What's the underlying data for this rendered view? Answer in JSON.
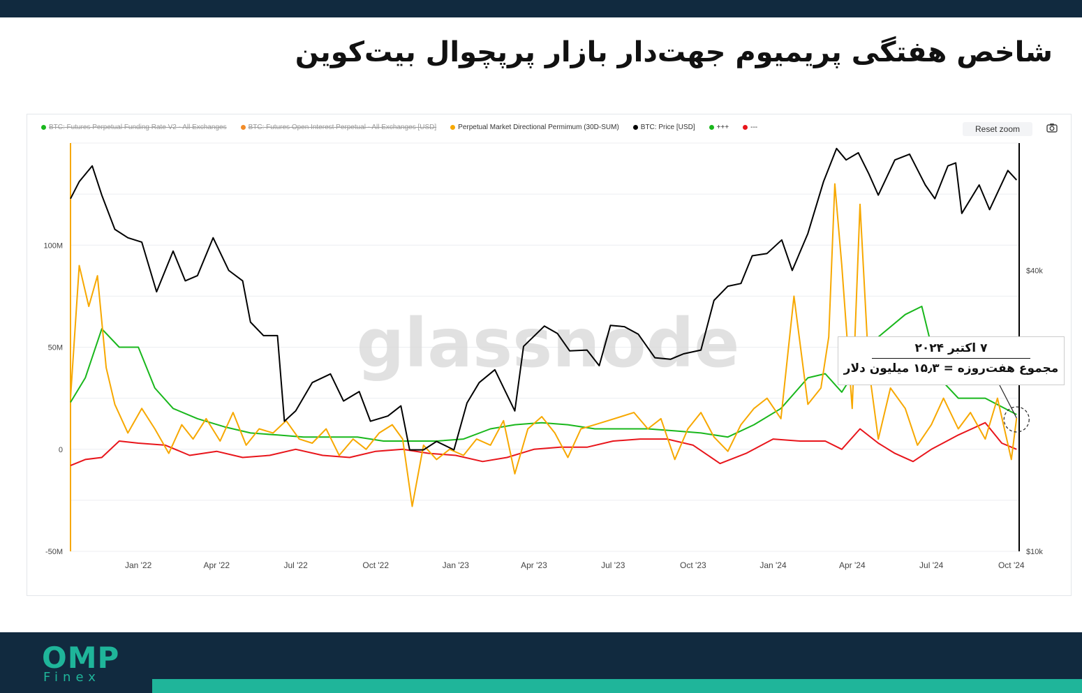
{
  "page": {
    "title": "شاخص هفتگی پریمیوم جهت‌دار بازار پرپچوال بیت‌کوین"
  },
  "toolbar": {
    "reset_zoom": "Reset zoom"
  },
  "watermark": "glassnode",
  "annotation": {
    "date": "۷ اکتبر ۲۰۲۴",
    "text": "مجموع هفت‌روزه = ۱۵٫۳ میلیون دلار"
  },
  "branding": {
    "logo_main": "OMP",
    "logo_sub": "Finex"
  },
  "colors": {
    "premium": "#f7a800",
    "price": "#000000",
    "plus": "#19b71c",
    "minus": "#e8151b",
    "header_bg": "#112a3f",
    "accent": "#1fb59a"
  },
  "chart_data": {
    "type": "line",
    "title": "",
    "legend": [
      {
        "label": "BTC: Futures Perpetual Funding Rate V2 - All Exchanges",
        "color": "#19b71c",
        "visible": false
      },
      {
        "label": "BTC: Futures Open Interest Perpetual - All Exchanges [USD]",
        "color": "#f28c28",
        "visible": false
      },
      {
        "label": "Perpetual Market Directional Permimum (30D-SUM)",
        "color": "#f7a800",
        "visible": true
      },
      {
        "label": "BTC: Price [USD]",
        "color": "#000000",
        "visible": true
      },
      {
        "label": "+++",
        "color": "#19b71c",
        "visible": true
      },
      {
        "label": "---",
        "color": "#e8151b",
        "visible": true
      }
    ],
    "legend_position": "top-left",
    "x_ticks": [
      "Jan '22",
      "Apr '22",
      "Jul '22",
      "Oct '22",
      "Jan '23",
      "Apr '23",
      "Jul '23",
      "Oct '23",
      "Jan '24",
      "Apr '24",
      "Jul '24",
      "Oct '24"
    ],
    "xlim": [
      "2021-10-15",
      "2024-10-10"
    ],
    "y_left": {
      "ticks": [
        "100M",
        "50M",
        "0",
        "-50M"
      ],
      "ylim": [
        -50,
        150
      ],
      "unit": "M USD"
    },
    "y_right": {
      "ticks": [
        "$40k",
        "$10k"
      ],
      "scale": "log",
      "ylim": [
        10000,
        75000
      ]
    },
    "grid": true,
    "series": [
      {
        "name": "Perpetual Market Directional Permimum (30D-SUM)",
        "axis": "left",
        "color": "#f7a800",
        "x": [
          "2021-10-15",
          "2021-10-25",
          "2021-11-05",
          "2021-11-15",
          "2021-11-25",
          "2021-12-05",
          "2021-12-20",
          "2022-01-05",
          "2022-01-20",
          "2022-02-05",
          "2022-02-20",
          "2022-03-05",
          "2022-03-20",
          "2022-04-05",
          "2022-04-20",
          "2022-05-05",
          "2022-05-20",
          "2022-06-05",
          "2022-06-20",
          "2022-07-05",
          "2022-07-20",
          "2022-08-05",
          "2022-08-20",
          "2022-09-05",
          "2022-09-20",
          "2022-10-05",
          "2022-10-20",
          "2022-11-01",
          "2022-11-12",
          "2022-11-25",
          "2022-12-10",
          "2022-12-25",
          "2023-01-10",
          "2023-01-25",
          "2023-02-10",
          "2023-02-25",
          "2023-03-10",
          "2023-03-25",
          "2023-04-10",
          "2023-04-25",
          "2023-05-10",
          "2023-05-25",
          "2023-06-10",
          "2023-06-25",
          "2023-07-10",
          "2023-07-25",
          "2023-08-10",
          "2023-08-25",
          "2023-09-10",
          "2023-09-25",
          "2023-10-10",
          "2023-10-25",
          "2023-11-10",
          "2023-11-25",
          "2023-12-10",
          "2023-12-25",
          "2024-01-10",
          "2024-01-25",
          "2024-02-10",
          "2024-02-25",
          "2024-03-05",
          "2024-03-12",
          "2024-03-20",
          "2024-04-01",
          "2024-04-10",
          "2024-04-20",
          "2024-05-01",
          "2024-05-15",
          "2024-06-01",
          "2024-06-15",
          "2024-07-01",
          "2024-07-15",
          "2024-08-01",
          "2024-08-15",
          "2024-09-01",
          "2024-09-15",
          "2024-10-01",
          "2024-10-07"
        ],
        "values": [
          25,
          90,
          70,
          85,
          40,
          22,
          8,
          20,
          10,
          -2,
          12,
          5,
          15,
          4,
          18,
          2,
          10,
          8,
          14,
          5,
          3,
          10,
          -3,
          5,
          0,
          8,
          12,
          5,
          -28,
          2,
          -5,
          0,
          -3,
          5,
          2,
          14,
          -12,
          10,
          16,
          8,
          -4,
          10,
          12,
          14,
          16,
          18,
          10,
          15,
          -5,
          10,
          18,
          6,
          -1,
          12,
          20,
          25,
          15,
          75,
          22,
          30,
          55,
          130,
          90,
          20,
          120,
          40,
          5,
          30,
          20,
          2,
          12,
          25,
          10,
          18,
          5,
          25,
          -5,
          15.3
        ]
      },
      {
        "name": "BTC: Price [USD]",
        "axis": "right",
        "color": "#000000",
        "x": [
          "2021-10-15",
          "2021-10-25",
          "2021-11-09",
          "2021-11-20",
          "2021-12-05",
          "2021-12-20",
          "2022-01-05",
          "2022-01-22",
          "2022-02-10",
          "2022-02-24",
          "2022-03-10",
          "2022-03-28",
          "2022-04-15",
          "2022-05-01",
          "2022-05-10",
          "2022-05-25",
          "2022-06-10",
          "2022-06-18",
          "2022-07-01",
          "2022-07-20",
          "2022-08-10",
          "2022-08-25",
          "2022-09-12",
          "2022-09-25",
          "2022-10-15",
          "2022-10-30",
          "2022-11-09",
          "2022-11-25",
          "2022-12-10",
          "2022-12-30",
          "2023-01-14",
          "2023-01-28",
          "2023-02-15",
          "2023-03-10",
          "2023-03-20",
          "2023-04-13",
          "2023-04-28",
          "2023-05-12",
          "2023-06-01",
          "2023-06-15",
          "2023-06-28",
          "2023-07-14",
          "2023-07-30",
          "2023-08-18",
          "2023-09-05",
          "2023-09-20",
          "2023-10-10",
          "2023-10-25",
          "2023-11-10",
          "2023-11-25",
          "2023-12-08",
          "2023-12-25",
          "2024-01-11",
          "2024-01-23",
          "2024-02-10",
          "2024-02-28",
          "2024-03-14",
          "2024-03-25",
          "2024-04-08",
          "2024-04-20",
          "2024-05-01",
          "2024-05-20",
          "2024-06-06",
          "2024-06-24",
          "2024-07-05",
          "2024-07-20",
          "2024-07-29",
          "2024-08-05",
          "2024-08-25",
          "2024-09-06",
          "2024-09-27",
          "2024-10-07"
        ],
        "values": [
          57000,
          62000,
          67000,
          58000,
          49000,
          47000,
          46000,
          36000,
          44000,
          38000,
          39000,
          47000,
          40000,
          38000,
          31000,
          29000,
          29000,
          19000,
          20000,
          23000,
          24000,
          21000,
          22000,
          19000,
          19500,
          20500,
          16500,
          16500,
          17200,
          16500,
          20800,
          23000,
          24500,
          20000,
          27500,
          30400,
          29300,
          26900,
          27000,
          25000,
          30500,
          30300,
          29200,
          26000,
          25800,
          26500,
          27000,
          34500,
          37000,
          37500,
          43000,
          43500,
          46500,
          40000,
          48000,
          62000,
          73000,
          69000,
          71500,
          64500,
          58000,
          69000,
          71000,
          61000,
          57000,
          67000,
          68000,
          53000,
          61000,
          54000,
          65500,
          62500
        ]
      },
      {
        "name": "+++",
        "axis": "left",
        "color": "#19b71c",
        "x": [
          "2021-10-15",
          "2021-11-01",
          "2021-11-20",
          "2021-12-10",
          "2022-01-01",
          "2022-01-20",
          "2022-02-10",
          "2022-03-10",
          "2022-04-10",
          "2022-05-10",
          "2022-06-10",
          "2022-07-10",
          "2022-08-10",
          "2022-09-10",
          "2022-10-10",
          "2022-11-10",
          "2022-12-10",
          "2023-01-10",
          "2023-02-10",
          "2023-03-10",
          "2023-04-10",
          "2023-05-10",
          "2023-06-10",
          "2023-07-10",
          "2023-08-10",
          "2023-09-10",
          "2023-10-10",
          "2023-11-10",
          "2023-12-10",
          "2024-01-10",
          "2024-02-10",
          "2024-03-01",
          "2024-03-20",
          "2024-04-10",
          "2024-05-01",
          "2024-06-01",
          "2024-06-20",
          "2024-07-10",
          "2024-08-01",
          "2024-09-01",
          "2024-10-07"
        ],
        "values": [
          23,
          35,
          59,
          50,
          50,
          30,
          20,
          15,
          11,
          8,
          7,
          6,
          6,
          6,
          4,
          4,
          4,
          5,
          10,
          12,
          13,
          12,
          10,
          10,
          10,
          9,
          8,
          6,
          12,
          20,
          35,
          37,
          28,
          42,
          55,
          66,
          70,
          35,
          25,
          25,
          17
        ]
      },
      {
        "name": "---",
        "axis": "left",
        "color": "#e8151b",
        "x": [
          "2021-10-15",
          "2021-11-01",
          "2021-11-20",
          "2021-12-10",
          "2022-01-01",
          "2022-02-01",
          "2022-03-01",
          "2022-04-01",
          "2022-05-01",
          "2022-06-01",
          "2022-07-01",
          "2022-08-01",
          "2022-09-01",
          "2022-10-01",
          "2022-11-01",
          "2022-12-01",
          "2023-01-01",
          "2023-02-01",
          "2023-03-01",
          "2023-04-01",
          "2023-05-01",
          "2023-06-01",
          "2023-07-01",
          "2023-08-01",
          "2023-09-01",
          "2023-10-01",
          "2023-11-01",
          "2023-12-01",
          "2024-01-01",
          "2024-02-01",
          "2024-03-01",
          "2024-03-20",
          "2024-04-10",
          "2024-05-01",
          "2024-05-20",
          "2024-06-10",
          "2024-07-01",
          "2024-08-01",
          "2024-09-01",
          "2024-09-20",
          "2024-10-07"
        ],
        "values": [
          -8,
          -5,
          -4,
          4,
          3,
          2,
          -3,
          -1,
          -4,
          -3,
          0,
          -3,
          -4,
          -1,
          0,
          -2,
          -3,
          -6,
          -4,
          0,
          1,
          1,
          4,
          5,
          5,
          2,
          -7,
          -2,
          5,
          4,
          4,
          0,
          10,
          3,
          -2,
          -6,
          0,
          7,
          13,
          3,
          0
        ]
      }
    ]
  }
}
